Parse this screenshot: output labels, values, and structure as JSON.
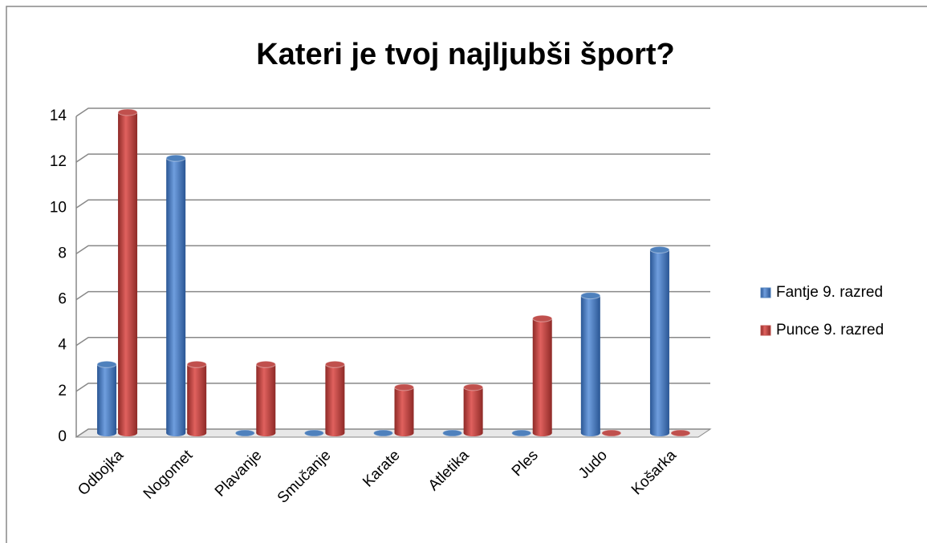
{
  "chart_data": {
    "type": "bar",
    "title": "Kateri je tvoj najljubši šport?",
    "categories": [
      "Odbojka",
      "Nogomet",
      "Plavanje",
      "Smučanje",
      "Karate",
      "Atletika",
      "Ples",
      "Judo",
      "Košarka"
    ],
    "series": [
      {
        "name": "Fantje 9. razred",
        "color": "#4f81bd",
        "values": [
          3,
          12,
          0,
          0,
          0,
          0,
          0,
          6,
          8
        ]
      },
      {
        "name": "Punce 9. razred",
        "color": "#c0504d",
        "values": [
          14,
          3,
          3,
          3,
          2,
          2,
          5,
          0,
          0
        ]
      }
    ],
    "ylim": [
      0,
      14
    ],
    "yticks": [
      0,
      2,
      4,
      6,
      8,
      10,
      12,
      14
    ],
    "grid": true,
    "legend": "right"
  }
}
